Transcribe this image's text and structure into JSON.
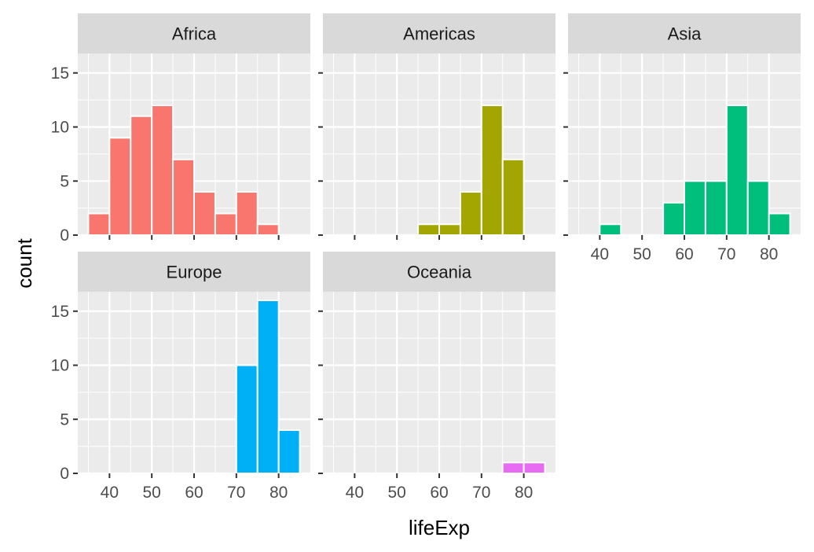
{
  "chart_data": {
    "type": "bar",
    "subtype": "faceted-histogram",
    "xlabel": "lifeExp",
    "ylabel": "count",
    "x_ticks": [
      40,
      50,
      60,
      70,
      80
    ],
    "y_ticks": [
      0,
      5,
      10,
      15
    ],
    "xlim": [
      32.5,
      87.5
    ],
    "ylim": [
      0,
      16.8
    ],
    "bin_width": 5,
    "bin_starts": [
      35,
      40,
      45,
      50,
      55,
      60,
      65,
      70,
      75,
      80
    ],
    "legend": "none",
    "grid": true,
    "facets": [
      {
        "name": "Africa",
        "color": "#F8766D",
        "counts": [
          2,
          9,
          11,
          12,
          7,
          4,
          2,
          4,
          1,
          0
        ]
      },
      {
        "name": "Americas",
        "color": "#A3A500",
        "counts": [
          0,
          0,
          0,
          0,
          1,
          1,
          4,
          12,
          7,
          0
        ]
      },
      {
        "name": "Asia",
        "color": "#00BF7D",
        "counts": [
          0,
          1,
          0,
          0,
          3,
          5,
          5,
          12,
          5,
          2
        ]
      },
      {
        "name": "Europe",
        "color": "#00B0F6",
        "counts": [
          0,
          0,
          0,
          0,
          0,
          0,
          0,
          10,
          16,
          4
        ]
      },
      {
        "name": "Oceania",
        "color": "#E76BF3",
        "counts": [
          0,
          0,
          0,
          0,
          0,
          0,
          0,
          0,
          1,
          1
        ]
      }
    ]
  }
}
